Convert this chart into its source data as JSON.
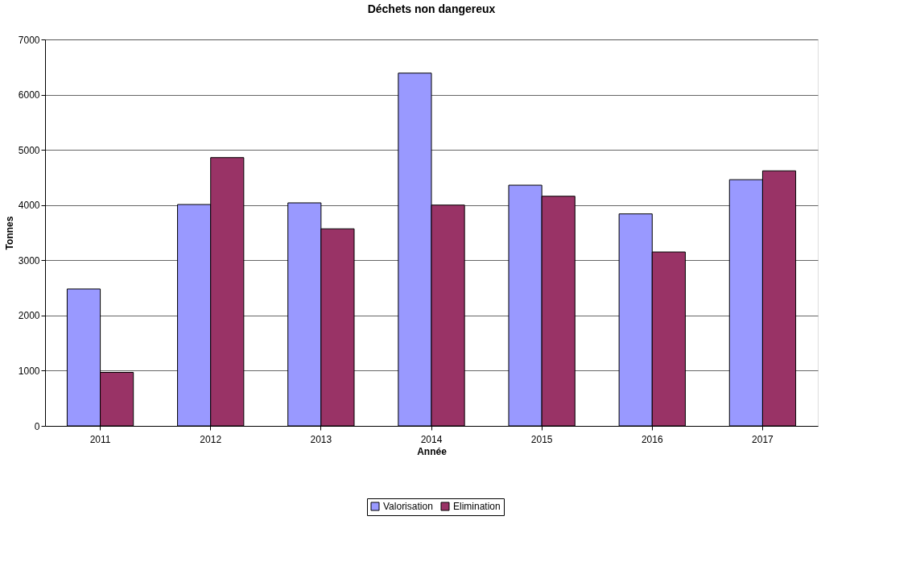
{
  "chart_data": {
    "type": "bar",
    "title": "Déchets non dangereux",
    "xlabel": "Année",
    "ylabel": "Tonnes",
    "categories": [
      "2011",
      "2012",
      "2013",
      "2014",
      "2015",
      "2016",
      "2017"
    ],
    "series": [
      {
        "name": "Valorisation",
        "color": "#9999ff",
        "values": [
          2480,
          4010,
          4040,
          6390,
          4360,
          3840,
          4460
        ]
      },
      {
        "name": "Elimination",
        "color": "#993366",
        "values": [
          970,
          4860,
          3570,
          4000,
          4160,
          3150,
          4620
        ]
      }
    ],
    "ylim": [
      0,
      7000
    ],
    "yticks": [
      0,
      1000,
      2000,
      3000,
      4000,
      5000,
      6000,
      7000
    ],
    "grid": "y",
    "legend": "bottom"
  }
}
